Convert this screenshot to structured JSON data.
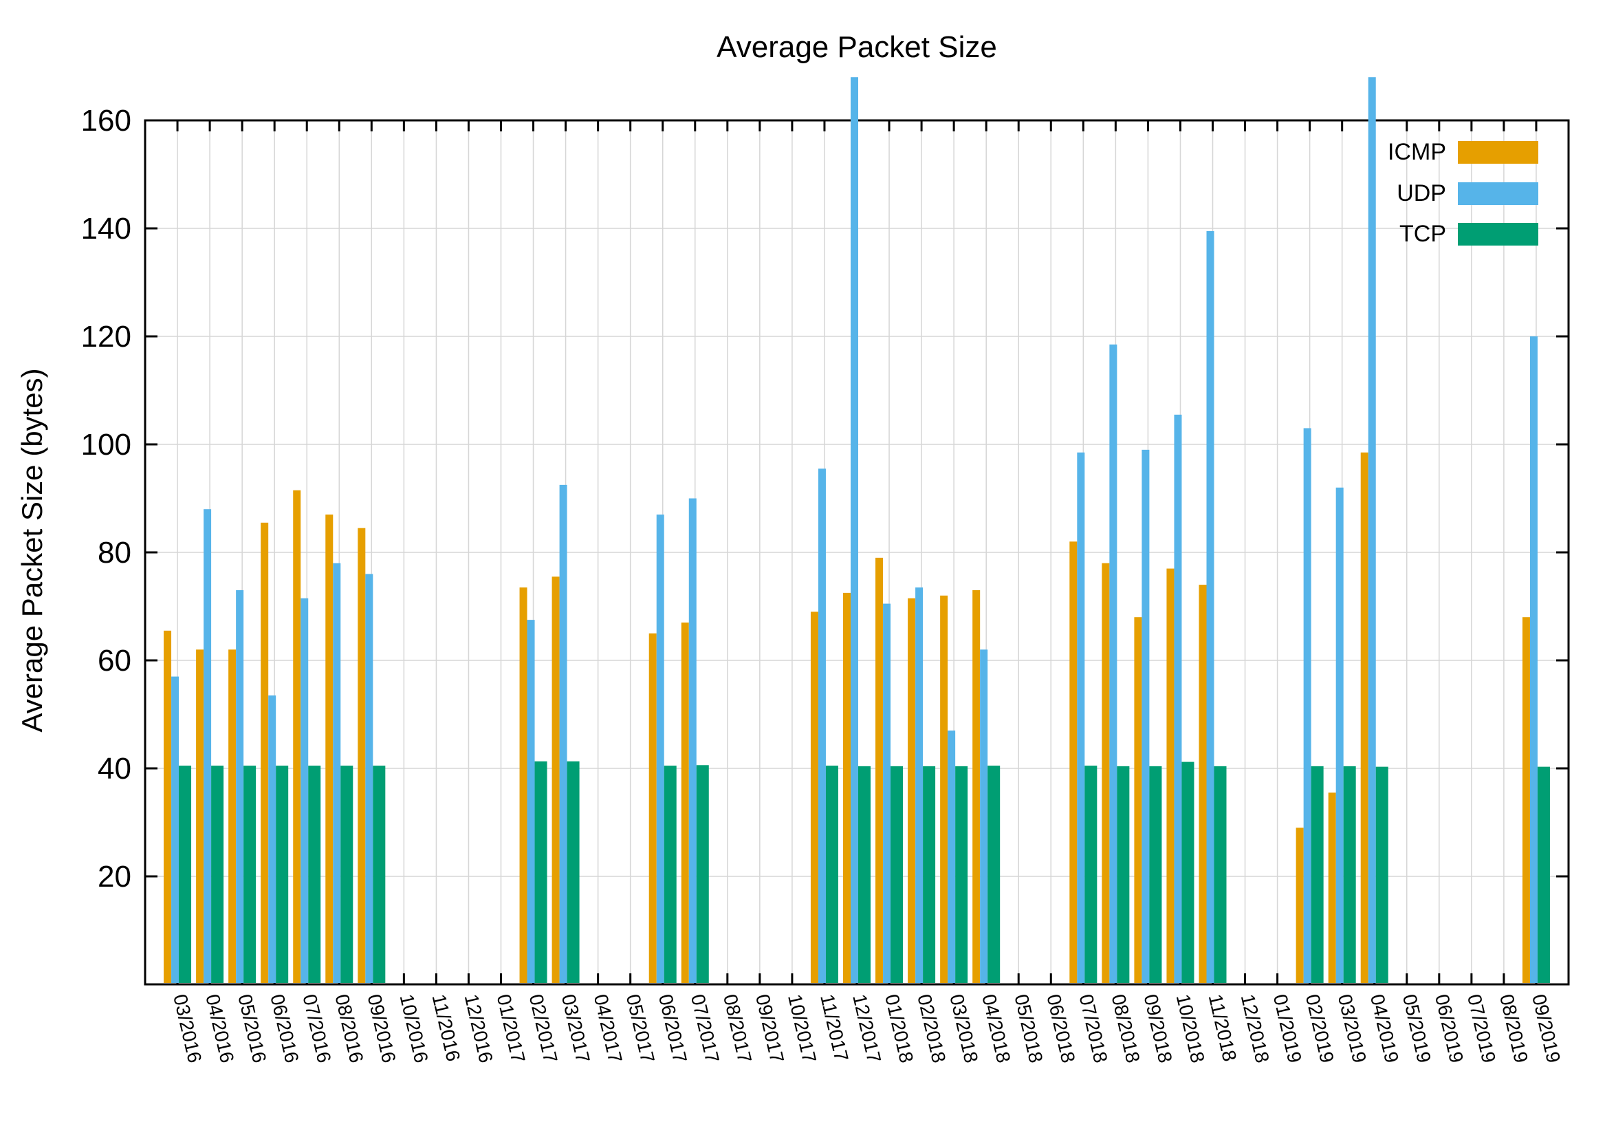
{
  "title": "Average Packet Size",
  "axes": {
    "y_label": "Average Packet Size (bytes)",
    "y_tick_labels": [
      "20",
      "40",
      "60",
      "80",
      "100",
      "120",
      "140",
      "160"
    ],
    "x_tick_labels_note": "one rotated month label per category"
  },
  "colors": {
    "icmp": "#E69F00",
    "udp": "#56B4E9",
    "tcp": "#009E73",
    "grid": "#d6d6d6",
    "axis": "#000000",
    "background": "#ffffff"
  },
  "legend": {
    "position": "top-right",
    "entries": [
      "ICMP",
      "UDP",
      "TCP"
    ]
  },
  "chart_data": {
    "type": "bar",
    "title": "Average Packet Size",
    "xlabel": "",
    "ylabel": "Average Packet Size (bytes)",
    "ylim": [
      0,
      160
    ],
    "ytick_step": 20,
    "grid": true,
    "legend_position": "top-right",
    "categories": [
      "03/2016",
      "04/2016",
      "05/2016",
      "06/2016",
      "07/2016",
      "08/2016",
      "09/2016",
      "10/2016",
      "11/2016",
      "12/2016",
      "01/2017",
      "02/2017",
      "03/2017",
      "04/2017",
      "05/2017",
      "06/2017",
      "07/2017",
      "08/2017",
      "09/2017",
      "10/2017",
      "11/2017",
      "12/2017",
      "01/2018",
      "02/2018",
      "03/2018",
      "04/2018",
      "05/2018",
      "06/2018",
      "07/2018",
      "08/2018",
      "09/2018",
      "10/2018",
      "11/2018",
      "12/2018",
      "01/2019",
      "02/2019",
      "03/2019",
      "04/2019",
      "05/2019",
      "06/2019",
      "07/2019",
      "08/2019",
      "09/2019"
    ],
    "series": [
      {
        "name": "ICMP",
        "color": "#E69F00",
        "values": [
          65.5,
          62,
          62,
          85.5,
          91.5,
          87,
          84.5,
          null,
          null,
          null,
          null,
          73.5,
          75.5,
          null,
          null,
          65,
          67,
          null,
          null,
          null,
          69,
          72.5,
          79,
          71.5,
          72,
          73,
          null,
          null,
          82,
          78,
          68,
          77,
          74,
          null,
          null,
          29,
          35.5,
          98.5,
          null,
          null,
          null,
          null,
          68
        ]
      },
      {
        "name": "UDP",
        "color": "#56B4E9",
        "values": [
          57,
          88,
          73,
          53.5,
          71.5,
          78,
          76,
          null,
          null,
          null,
          null,
          67.5,
          92.5,
          null,
          null,
          87,
          90,
          null,
          null,
          null,
          95.5,
          168,
          70.5,
          73.5,
          47,
          62,
          null,
          null,
          98.5,
          118.5,
          99,
          105.5,
          139.5,
          null,
          null,
          103,
          92,
          168,
          null,
          null,
          null,
          null,
          120
        ]
      },
      {
        "name": "TCP",
        "color": "#009E73",
        "values": [
          40.5,
          40.5,
          40.5,
          40.5,
          40.5,
          40.5,
          40.5,
          null,
          null,
          null,
          null,
          41.3,
          41.3,
          null,
          null,
          40.5,
          40.6,
          null,
          null,
          null,
          40.5,
          40.4,
          40.4,
          40.4,
          40.4,
          40.5,
          null,
          null,
          40.5,
          40.4,
          40.4,
          41.2,
          40.4,
          null,
          null,
          40.4,
          40.4,
          40.3,
          null,
          null,
          null,
          null,
          40.3
        ]
      }
    ],
    "clipped": {
      "note": "UDP bars for 12/2017 and 04/2019 exceed the y-axis maximum and are drawn overflowing slightly past the 160 top border",
      "categories": [
        "12/2017",
        "04/2019"
      ],
      "drawn_to_value": 168
    }
  }
}
